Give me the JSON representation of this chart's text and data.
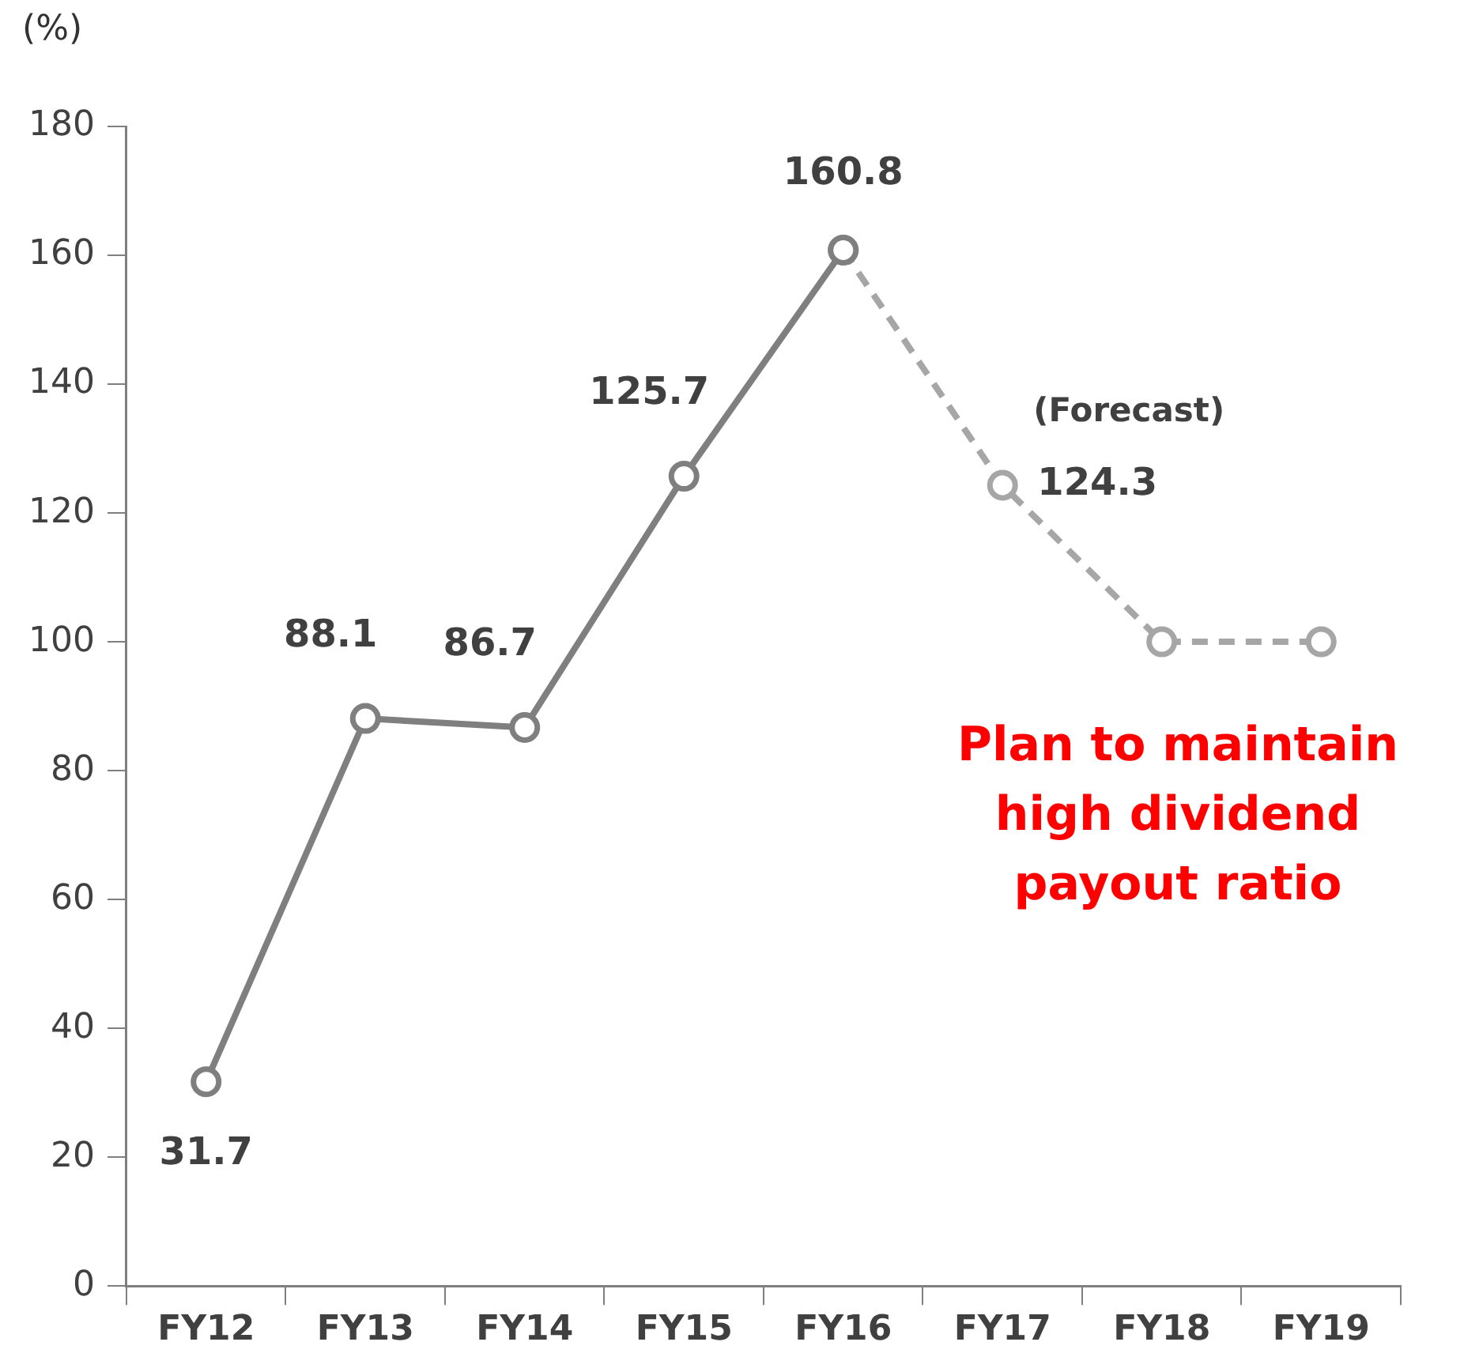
{
  "chart_data": {
    "type": "line",
    "ylabel": "(%)",
    "categories": [
      "FY12",
      "FY13",
      "FY14",
      "FY15",
      "FY16",
      "FY17",
      "FY18",
      "FY19"
    ],
    "series": [
      {
        "color": "#7f7f7f",
        "line_style": "solid",
        "values": [
          31.7,
          88.1,
          86.7,
          125.7,
          160.8,
          null,
          null,
          null
        ],
        "value_labels": [
          "31.7",
          "88.1",
          "86.7",
          "125.7",
          "160.8",
          null,
          null,
          null
        ]
      },
      {
        "color": "#a6a6a6",
        "line_style": "dashed",
        "values": [
          null,
          null,
          null,
          null,
          160.8,
          124.3,
          100,
          100
        ],
        "value_labels": [
          null,
          null,
          null,
          null,
          null,
          "124.3",
          null,
          null
        ]
      }
    ],
    "ylim": [
      0,
      180
    ],
    "yticks": [
      0,
      20,
      40,
      60,
      80,
      100,
      120,
      140,
      160,
      180
    ],
    "grid": false,
    "legend": false,
    "marker": "circle",
    "annotations": [
      {
        "text": "(Forecast)",
        "x": "FY17",
        "y": 124.3
      },
      "Plan to maintain high dividend payout ratio"
    ]
  }
}
